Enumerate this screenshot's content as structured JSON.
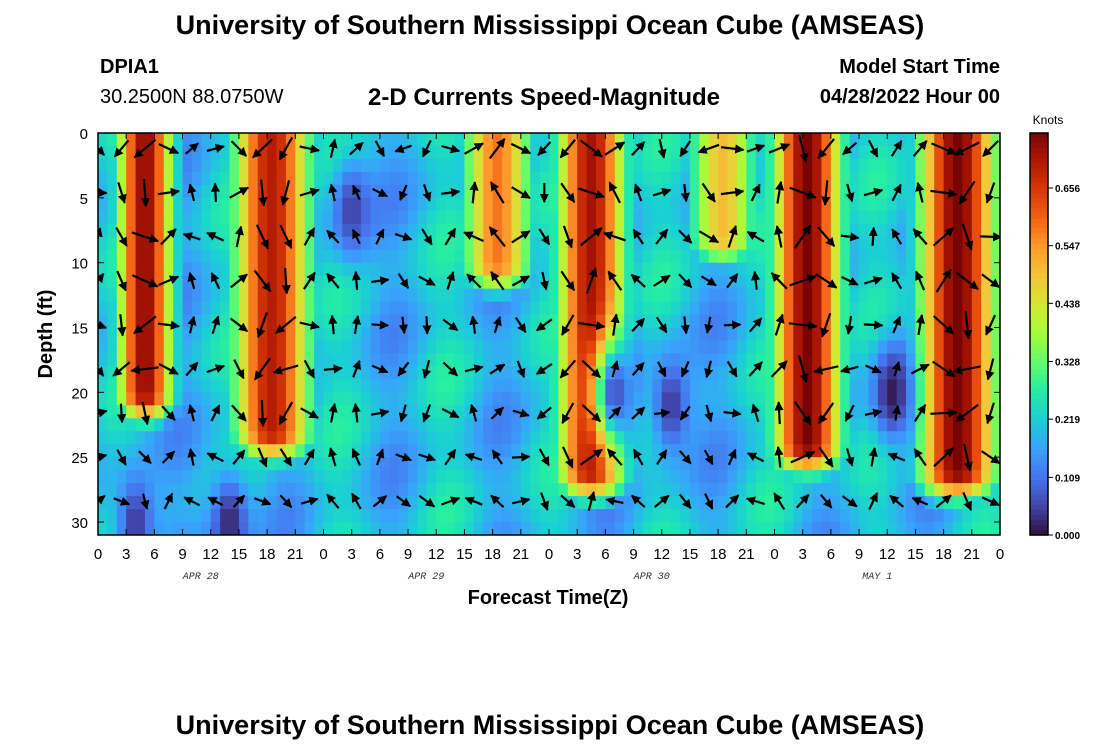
{
  "header": {
    "title": "University of Southern Mississippi Ocean Cube (AMSEAS)",
    "station_id": "DPIA1",
    "coordinates": "30.2500N  88.0750W",
    "plot_title": "2-D Currents Speed-Magnitude",
    "model_start_label": "Model Start Time",
    "model_start_value": "04/28/2022 Hour 00"
  },
  "footer": {
    "title": "University of Southern Mississippi Ocean Cube (AMSEAS)"
  },
  "chart_data": {
    "type": "heatmap",
    "title": "2-D Currents Speed-Magnitude",
    "xlabel": "Forecast Time(Z)",
    "ylabel": "Depth (ft)",
    "x_tick_labels": [
      "0",
      "3",
      "6",
      "9",
      "12",
      "15",
      "18",
      "21",
      "0",
      "3",
      "6",
      "9",
      "12",
      "15",
      "18",
      "21",
      "0",
      "3",
      "6",
      "9",
      "12",
      "15",
      "18",
      "21",
      "0",
      "3",
      "6",
      "9",
      "12",
      "15",
      "18",
      "21",
      "0"
    ],
    "x_range_hours": [
      0,
      96
    ],
    "date_labels": [
      {
        "label": "APR 28",
        "hour": 12
      },
      {
        "label": "APR 29",
        "hour": 36
      },
      {
        "label": "APR 30",
        "hour": 60
      },
      {
        "label": "MAY 1",
        "hour": 84
      }
    ],
    "y_ticks": [
      0,
      5,
      10,
      15,
      20,
      25,
      30
    ],
    "y_tick_labels": [
      "0",
      "5",
      "10",
      "15",
      "20",
      "25",
      "30"
    ],
    "ylim": [
      0,
      31
    ],
    "y_inverted": true,
    "colorbar": {
      "unit_label": "Knots",
      "tick_values": [
        0.0,
        0.109,
        0.219,
        0.328,
        0.438,
        0.547,
        0.656
      ],
      "tick_labels": [
        "0.000",
        "0.109",
        "0.219",
        "0.328",
        "0.438",
        "0.547",
        "0.656"
      ],
      "range": [
        0,
        0.76
      ],
      "colormap": [
        "#30123b",
        "#4145ab",
        "#4675ed",
        "#39a2fc",
        "#1bcfd4",
        "#24eca6",
        "#61fc6c",
        "#a4fc3b",
        "#d1e834",
        "#f3c63a",
        "#fe9b2d",
        "#f36315",
        "#d93806",
        "#b11901",
        "#7a0403"
      ]
    },
    "high_speed_bands": [
      {
        "center_hour": 5.0,
        "width_hours": 3.2,
        "peak_knots": 0.74,
        "max_depth_ft": 20
      },
      {
        "center_hour": 18.5,
        "width_hours": 4.5,
        "peak_knots": 0.7,
        "max_depth_ft": 23
      },
      {
        "center_hour": 42.5,
        "width_hours": 4.0,
        "peak_knots": 0.58,
        "max_depth_ft": 10
      },
      {
        "center_hour": 52.5,
        "width_hours": 4.0,
        "peak_knots": 0.72,
        "max_depth_ft": 26
      },
      {
        "center_hour": 66.5,
        "width_hours": 4.0,
        "peak_knots": 0.5,
        "max_depth_ft": 8
      },
      {
        "center_hour": 75.5,
        "width_hours": 4.0,
        "peak_knots": 0.76,
        "max_depth_ft": 24
      },
      {
        "center_hour": 91.5,
        "width_hours": 4.5,
        "peak_knots": 0.76,
        "max_depth_ft": 26
      }
    ],
    "low_speed_regions": [
      {
        "center_hour": 27.0,
        "depth_ft": 6,
        "min_knots": 0.05
      },
      {
        "center_hour": 55.0,
        "depth_ft": 20,
        "min_knots": 0.06
      },
      {
        "center_hour": 61.0,
        "depth_ft": 21,
        "min_knots": 0.04
      },
      {
        "center_hour": 84.5,
        "depth_ft": 20,
        "min_knots": 0.01
      },
      {
        "center_hour": 14.0,
        "depth_ft": 30,
        "min_knots": 0.02
      },
      {
        "center_hour": 4.0,
        "depth_ft": 30,
        "min_knots": 0.04
      }
    ]
  }
}
